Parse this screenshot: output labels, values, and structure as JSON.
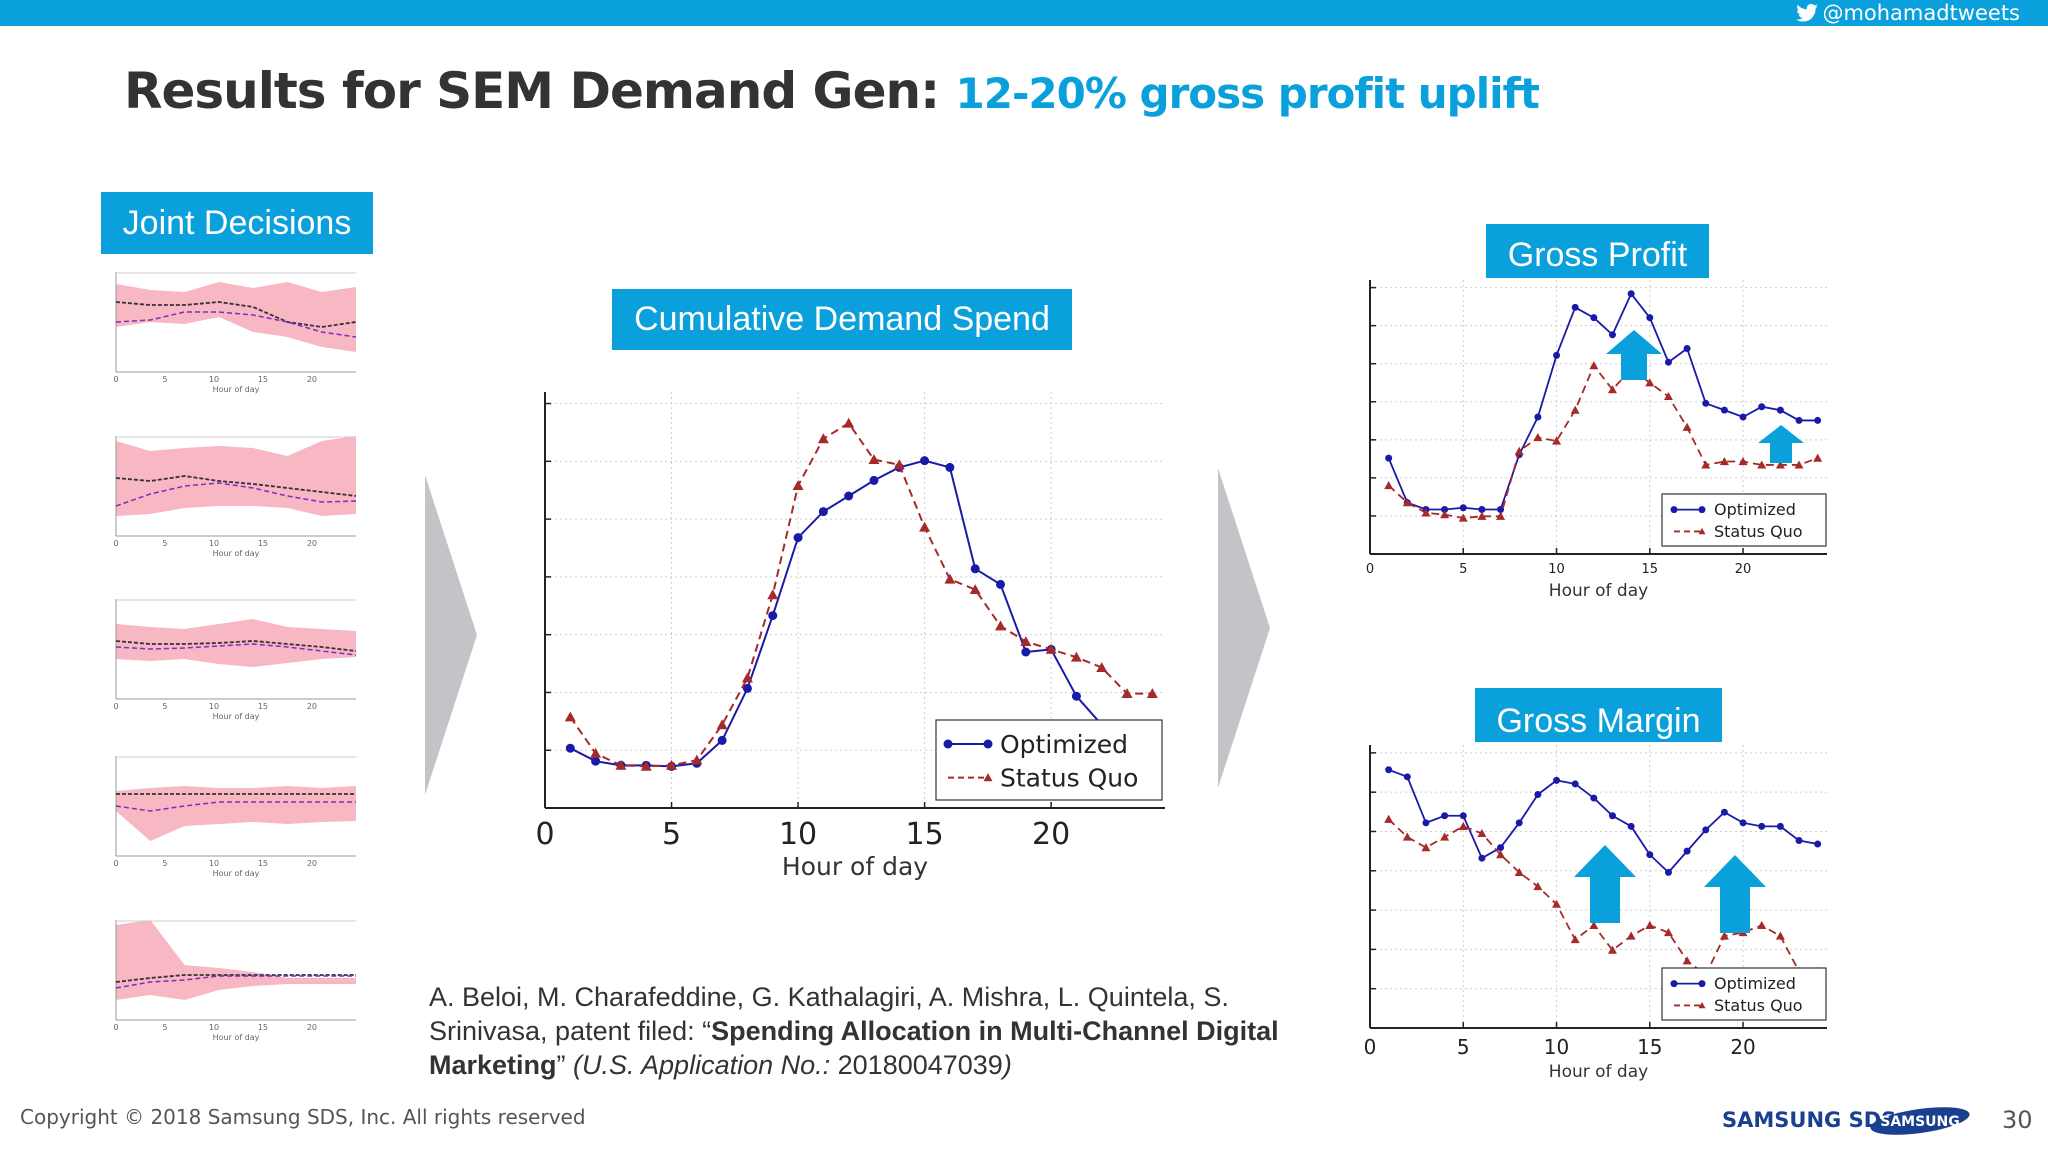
{
  "header": {
    "twitter_handle": "@mohamadtweets",
    "bar_color": "#0aa0dc"
  },
  "title": {
    "main": "Results for SEM Demand Gen:",
    "highlight": "12-20% gross profit uplift"
  },
  "labels": {
    "joint_decisions": "Joint Decisions",
    "cumulative_demand_spend": "Cumulative Demand Spend",
    "gross_profit": "Gross Profit",
    "gross_margin": "Gross Margin"
  },
  "small_axis_label": "Hour of day",
  "small_ticks": [
    "0",
    "5",
    "10",
    "15",
    "20"
  ],
  "chart_data": [
    {
      "type": "line",
      "title": "Cumulative Demand Spend",
      "xlabel": "Hour of day",
      "xticks": [
        "0",
        "5",
        "10",
        "15",
        "20"
      ],
      "xlim": [
        0,
        24.5
      ],
      "ylim": [
        0,
        8
      ],
      "series": [
        {
          "name": "Optimized",
          "color": "#1a1aa8",
          "style": "solid",
          "x": [
            1,
            2,
            3,
            4,
            5,
            6,
            7,
            8,
            9,
            10,
            11,
            12,
            13,
            14,
            15,
            16,
            17,
            18,
            19,
            20,
            21,
            22,
            23
          ],
          "y": [
            1.15,
            0.9,
            0.82,
            0.82,
            0.8,
            0.86,
            1.3,
            2.3,
            3.7,
            5.2,
            5.7,
            6.0,
            6.3,
            6.55,
            6.68,
            6.55,
            4.6,
            4.3,
            3.0,
            3.05,
            2.15,
            1.6,
            0.35
          ]
        },
        {
          "name": "Status Quo",
          "color": "#a52a2a",
          "style": "dashed",
          "x": [
            1,
            2,
            3,
            4,
            5,
            6,
            7,
            8,
            9,
            10,
            11,
            12,
            13,
            14,
            15,
            16,
            17,
            18,
            19,
            20,
            21,
            22,
            23,
            24
          ],
          "y": [
            1.75,
            1.05,
            0.82,
            0.8,
            0.82,
            0.92,
            1.6,
            2.5,
            4.1,
            6.2,
            7.1,
            7.4,
            6.7,
            6.6,
            5.4,
            4.4,
            4.2,
            3.5,
            3.2,
            3.05,
            2.9,
            2.7,
            2.2,
            2.2
          ]
        }
      ],
      "legend": [
        "Optimized",
        "Status Quo"
      ],
      "legend_position": "lower-right"
    },
    {
      "type": "line",
      "title": "Gross Profit",
      "xlabel": "Hour of day",
      "xticks": [
        "0",
        "5",
        "10",
        "15",
        "20"
      ],
      "xlim": [
        0,
        24.5
      ],
      "ylim": [
        0,
        8
      ],
      "series": [
        {
          "name": "Optimized",
          "color": "#1a1aa8",
          "style": "solid",
          "x": [
            1,
            2,
            3,
            4,
            5,
            6,
            7,
            8,
            9,
            10,
            11,
            12,
            13,
            14,
            15,
            16,
            17,
            18,
            19,
            20,
            21,
            22,
            23,
            24
          ],
          "y": [
            2.8,
            1.5,
            1.3,
            1.3,
            1.35,
            1.3,
            1.3,
            2.9,
            4.0,
            5.8,
            7.2,
            6.9,
            6.4,
            7.6,
            6.9,
            5.6,
            6.0,
            4.4,
            4.2,
            4.0,
            4.3,
            4.2,
            3.9,
            3.9
          ]
        },
        {
          "name": "Status Quo",
          "color": "#a52a2a",
          "style": "dashed",
          "x": [
            1,
            2,
            3,
            4,
            5,
            6,
            7,
            8,
            9,
            10,
            11,
            12,
            13,
            14,
            15,
            16,
            17,
            18,
            19,
            20,
            21,
            22,
            23,
            24
          ],
          "y": [
            2.0,
            1.5,
            1.2,
            1.15,
            1.05,
            1.1,
            1.1,
            3.0,
            3.4,
            3.3,
            4.2,
            5.5,
            4.8,
            5.4,
            5.0,
            4.6,
            3.7,
            2.6,
            2.7,
            2.7,
            2.6,
            2.6,
            2.6,
            2.8
          ]
        }
      ],
      "legend": [
        "Optimized",
        "Status Quo"
      ],
      "legend_position": "lower-right"
    },
    {
      "type": "line",
      "title": "Gross Margin",
      "xlabel": "Hour of day",
      "xticks": [
        "0",
        "5",
        "10",
        "15",
        "20"
      ],
      "xlim": [
        0,
        24.5
      ],
      "ylim": [
        0,
        8
      ],
      "series": [
        {
          "name": "Optimized",
          "color": "#1a1aa8",
          "style": "solid",
          "x": [
            1,
            2,
            3,
            4,
            5,
            6,
            7,
            8,
            9,
            10,
            11,
            12,
            13,
            14,
            15,
            16,
            17,
            18,
            19,
            20,
            21,
            22,
            23,
            24
          ],
          "y": [
            7.3,
            7.1,
            5.8,
            6.0,
            6.0,
            4.8,
            5.1,
            5.8,
            6.6,
            7.0,
            6.9,
            6.5,
            6.0,
            5.7,
            4.9,
            4.4,
            5.0,
            5.6,
            6.1,
            5.8,
            5.7,
            5.7,
            5.3,
            5.2
          ]
        },
        {
          "name": "Status Quo",
          "color": "#a52a2a",
          "style": "dashed",
          "x": [
            1,
            2,
            3,
            4,
            5,
            6,
            7,
            8,
            9,
            10,
            11,
            12,
            13,
            14,
            15,
            16,
            17,
            18,
            19,
            20,
            21,
            22,
            23,
            24
          ],
          "y": [
            5.9,
            5.4,
            5.1,
            5.4,
            5.7,
            5.5,
            4.9,
            4.4,
            4.0,
            3.5,
            2.5,
            2.9,
            2.2,
            2.6,
            2.9,
            2.7,
            1.9,
            1.5,
            2.6,
            2.7,
            2.9,
            2.6,
            1.6,
            1.6
          ]
        }
      ],
      "legend": [
        "Optimized",
        "Status Quo"
      ],
      "legend_position": "lower-right"
    }
  ],
  "citation": {
    "authors": "A. Beloi, M. Charafeddine, G. Kathalagiri, A. Mishra, L. Quintela, S. Srinivasa, patent filed: “",
    "title": "Spending Allocation in Multi-Channel Digital Marketing",
    "after_title": "” ",
    "app_label": "(U.S. Application No.:",
    "app_number": " 20180047039",
    "close": ")"
  },
  "footer": {
    "copyright": "Copyright © 2018 Samsung SDS, Inc. All rights reserved",
    "logo_sds": "SAMSUNG SDS",
    "logo_samsung": "SAMSUNG",
    "page_number": "30"
  },
  "colors": {
    "accent": "#0aa0dc",
    "optimized": "#1a1aa8",
    "status_quo": "#a52a2a",
    "band": "#f7b7c3",
    "chevron": "#c4c4c8"
  }
}
